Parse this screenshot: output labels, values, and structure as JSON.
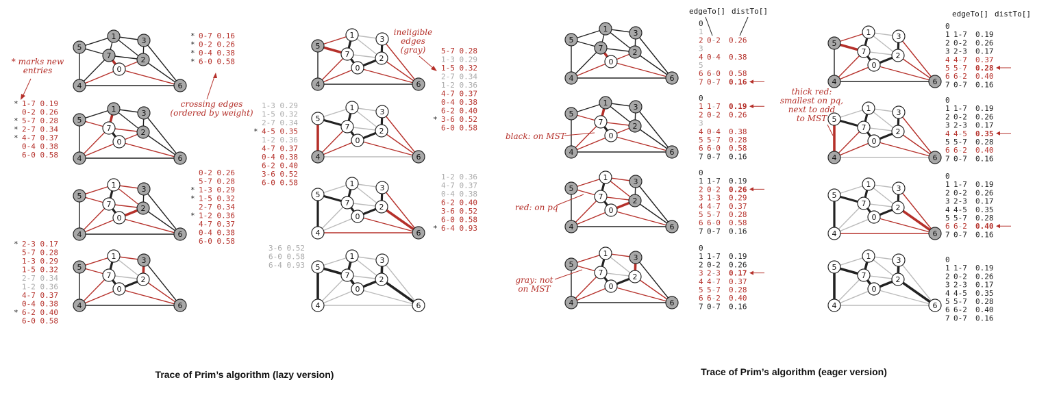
{
  "captions": {
    "lazy": "Trace of Prim’s algorithm (lazy version)",
    "eager": "Trace of Prim’s algorithm (eager version)"
  },
  "annotations": {
    "marks_new_1": "* marks new",
    "marks_new_2": "entries",
    "crossing_1": "crossing edges",
    "crossing_2": "(ordered by weight)",
    "ineligible_1": "ineligible",
    "ineligible_2": "edges",
    "ineligible_3": "(gray)",
    "black_mst": "black: on MST",
    "red_pq": "red: on pq",
    "gray_not_1": "gray: not",
    "gray_not_2": "on MST",
    "thick_1": "thick red:",
    "thick_2": "smallest on pq,",
    "thick_3": "next to add",
    "thick_4": "to MST",
    "col_edgeTo": "edgeTo[]",
    "col_distTo": "distTo[]"
  },
  "colors": {
    "red": "#b5302a",
    "gray": "#bbbbbb",
    "black": "#222222",
    "node_gray": "#a8a8a8"
  },
  "graph_vertices": [
    "0",
    "1",
    "2",
    "3",
    "4",
    "5",
    "6",
    "7"
  ],
  "lazy_lists": [
    [
      {
        "m": "*",
        "t": "0-7 0.16",
        "c": "r"
      },
      {
        "m": "*",
        "t": "0-2 0.26",
        "c": "r"
      },
      {
        "m": "*",
        "t": "0-4 0.38",
        "c": "r"
      },
      {
        "m": "*",
        "t": "6-0 0.58",
        "c": "r"
      }
    ],
    [
      {
        "m": "*",
        "t": "1-7 0.19",
        "c": "r"
      },
      {
        "m": "",
        "t": "0-2 0.26",
        "c": "r"
      },
      {
        "m": "*",
        "t": "5-7 0.28",
        "c": "r"
      },
      {
        "m": "*",
        "t": "2-7 0.34",
        "c": "r"
      },
      {
        "m": "*",
        "t": "4-7 0.37",
        "c": "r"
      },
      {
        "m": "",
        "t": "0-4 0.38",
        "c": "r"
      },
      {
        "m": "",
        "t": "6-0 0.58",
        "c": "r"
      }
    ],
    [
      {
        "m": "",
        "t": "0-2 0.26",
        "c": "r"
      },
      {
        "m": "",
        "t": "5-7 0.28",
        "c": "r"
      },
      {
        "m": "*",
        "t": "1-3 0.29",
        "c": "r"
      },
      {
        "m": "*",
        "t": "1-5 0.32",
        "c": "r"
      },
      {
        "m": "",
        "t": "2-7 0.34",
        "c": "r"
      },
      {
        "m": "*",
        "t": "1-2 0.36",
        "c": "r"
      },
      {
        "m": "",
        "t": "4-7 0.37",
        "c": "r"
      },
      {
        "m": "",
        "t": "0-4 0.38",
        "c": "r"
      },
      {
        "m": "",
        "t": "6-0 0.58",
        "c": "r"
      }
    ],
    [
      {
        "m": "*",
        "t": "2-3 0.17",
        "c": "r"
      },
      {
        "m": "",
        "t": "5-7 0.28",
        "c": "r"
      },
      {
        "m": "",
        "t": "1-3 0.29",
        "c": "r"
      },
      {
        "m": "",
        "t": "1-5 0.32",
        "c": "r"
      },
      {
        "m": "",
        "t": "2-7 0.34",
        "c": "g"
      },
      {
        "m": "",
        "t": "1-2 0.36",
        "c": "g"
      },
      {
        "m": "",
        "t": "4-7 0.37",
        "c": "r"
      },
      {
        "m": "",
        "t": "0-4 0.38",
        "c": "r"
      },
      {
        "m": "*",
        "t": "6-2 0.40",
        "c": "r"
      },
      {
        "m": "",
        "t": "6-0 0.58",
        "c": "r"
      }
    ],
    [
      {
        "m": "",
        "t": "5-7 0.28",
        "c": "r"
      },
      {
        "m": "",
        "t": "1-3 0.29",
        "c": "g"
      },
      {
        "m": "",
        "t": "1-5 0.32",
        "c": "r"
      },
      {
        "m": "",
        "t": "2-7 0.34",
        "c": "g"
      },
      {
        "m": "",
        "t": "1-2 0.36",
        "c": "g"
      },
      {
        "m": "",
        "t": "4-7 0.37",
        "c": "r"
      },
      {
        "m": "",
        "t": "0-4 0.38",
        "c": "r"
      },
      {
        "m": "",
        "t": "6-2 0.40",
        "c": "r"
      },
      {
        "m": "*",
        "t": "3-6 0.52",
        "c": "r"
      },
      {
        "m": "",
        "t": "6-0 0.58",
        "c": "r"
      }
    ],
    [
      {
        "m": "",
        "t": "1-3 0.29",
        "c": "g"
      },
      {
        "m": "",
        "t": "1-5 0.32",
        "c": "g"
      },
      {
        "m": "",
        "t": "2-7 0.34",
        "c": "g"
      },
      {
        "m": "*",
        "t": "4-5 0.35",
        "c": "r"
      },
      {
        "m": "",
        "t": "1-2 0.36",
        "c": "g"
      },
      {
        "m": "",
        "t": "4-7 0.37",
        "c": "r"
      },
      {
        "m": "",
        "t": "0-4 0.38",
        "c": "r"
      },
      {
        "m": "",
        "t": "6-2 0.40",
        "c": "r"
      },
      {
        "m": "",
        "t": "3-6 0.52",
        "c": "r"
      },
      {
        "m": "",
        "t": "6-0 0.58",
        "c": "r"
      }
    ],
    [
      {
        "m": "",
        "t": "1-2 0.36",
        "c": "g"
      },
      {
        "m": "",
        "t": "4-7 0.37",
        "c": "g"
      },
      {
        "m": "",
        "t": "0-4 0.38",
        "c": "g"
      },
      {
        "m": "",
        "t": "6-2 0.40",
        "c": "r"
      },
      {
        "m": "",
        "t": "3-6 0.52",
        "c": "r"
      },
      {
        "m": "",
        "t": "6-0 0.58",
        "c": "r"
      },
      {
        "m": "*",
        "t": "6-4 0.93",
        "c": "r"
      }
    ],
    [
      {
        "m": "",
        "t": "3-6 0.52",
        "c": "g"
      },
      {
        "m": "",
        "t": "6-0 0.58",
        "c": "g"
      },
      {
        "m": "",
        "t": "6-4 0.93",
        "c": "g"
      }
    ]
  ],
  "eager_tables": [
    [
      {
        "v": "0",
        "e": "",
        "d": ""
      },
      {
        "v": "1",
        "e": "",
        "d": "",
        "s": "g"
      },
      {
        "v": "2",
        "e": "0-2",
        "d": "0.26",
        "s": "r"
      },
      {
        "v": "3",
        "e": "",
        "d": "",
        "s": "g"
      },
      {
        "v": "4",
        "e": "0-4",
        "d": "0.38",
        "s": "r"
      },
      {
        "v": "5",
        "e": "",
        "d": "",
        "s": "g"
      },
      {
        "v": "6",
        "e": "6-0",
        "d": "0.58",
        "s": "r"
      },
      {
        "v": "7",
        "e": "0-7",
        "d": "0.16",
        "s": "r",
        "b": true,
        "a": true
      }
    ],
    [
      {
        "v": "0",
        "e": "",
        "d": ""
      },
      {
        "v": "1",
        "e": "1-7",
        "d": "0.19",
        "s": "r",
        "b": true,
        "a": true
      },
      {
        "v": "2",
        "e": "0-2",
        "d": "0.26",
        "s": "r"
      },
      {
        "v": "3",
        "e": "",
        "d": "",
        "s": "g"
      },
      {
        "v": "4",
        "e": "0-4",
        "d": "0.38",
        "s": "r"
      },
      {
        "v": "5",
        "e": "5-7",
        "d": "0.28",
        "s": "r"
      },
      {
        "v": "6",
        "e": "6-0",
        "d": "0.58",
        "s": "r"
      },
      {
        "v": "7",
        "e": "0-7",
        "d": "0.16",
        "s": "k"
      }
    ],
    [
      {
        "v": "0",
        "e": "",
        "d": ""
      },
      {
        "v": "1",
        "e": "1-7",
        "d": "0.19",
        "s": "k"
      },
      {
        "v": "2",
        "e": "0-2",
        "d": "0.26",
        "s": "r",
        "b": true,
        "a": true
      },
      {
        "v": "3",
        "e": "1-3",
        "d": "0.29",
        "s": "r"
      },
      {
        "v": "4",
        "e": "4-7",
        "d": "0.37",
        "s": "r"
      },
      {
        "v": "5",
        "e": "5-7",
        "d": "0.28",
        "s": "r"
      },
      {
        "v": "6",
        "e": "6-0",
        "d": "0.58",
        "s": "r"
      },
      {
        "v": "7",
        "e": "0-7",
        "d": "0.16",
        "s": "k"
      }
    ],
    [
      {
        "v": "0",
        "e": "",
        "d": ""
      },
      {
        "v": "1",
        "e": "1-7",
        "d": "0.19",
        "s": "k"
      },
      {
        "v": "2",
        "e": "0-2",
        "d": "0.26",
        "s": "k"
      },
      {
        "v": "3",
        "e": "2-3",
        "d": "0.17",
        "s": "r",
        "b": true,
        "a": true
      },
      {
        "v": "4",
        "e": "4-7",
        "d": "0.37",
        "s": "r"
      },
      {
        "v": "5",
        "e": "5-7",
        "d": "0.28",
        "s": "r"
      },
      {
        "v": "6",
        "e": "6-2",
        "d": "0.40",
        "s": "r"
      },
      {
        "v": "7",
        "e": "0-7",
        "d": "0.16",
        "s": "k"
      }
    ],
    [
      {
        "v": "0",
        "e": "",
        "d": ""
      },
      {
        "v": "1",
        "e": "1-7",
        "d": "0.19",
        "s": "k"
      },
      {
        "v": "2",
        "e": "0-2",
        "d": "0.26",
        "s": "k"
      },
      {
        "v": "3",
        "e": "2-3",
        "d": "0.17",
        "s": "k"
      },
      {
        "v": "4",
        "e": "4-7",
        "d": "0.37",
        "s": "r"
      },
      {
        "v": "5",
        "e": "5-7",
        "d": "0.28",
        "s": "r",
        "b": true,
        "a": true
      },
      {
        "v": "6",
        "e": "6-2",
        "d": "0.40",
        "s": "r"
      },
      {
        "v": "7",
        "e": "0-7",
        "d": "0.16",
        "s": "k"
      }
    ],
    [
      {
        "v": "0",
        "e": "",
        "d": ""
      },
      {
        "v": "1",
        "e": "1-7",
        "d": "0.19",
        "s": "k"
      },
      {
        "v": "2",
        "e": "0-2",
        "d": "0.26",
        "s": "k"
      },
      {
        "v": "3",
        "e": "2-3",
        "d": "0.17",
        "s": "k"
      },
      {
        "v": "4",
        "e": "4-5",
        "d": "0.35",
        "s": "r",
        "b": true,
        "a": true
      },
      {
        "v": "5",
        "e": "5-7",
        "d": "0.28",
        "s": "k"
      },
      {
        "v": "6",
        "e": "6-2",
        "d": "0.40",
        "s": "r"
      },
      {
        "v": "7",
        "e": "0-7",
        "d": "0.16",
        "s": "k"
      }
    ],
    [
      {
        "v": "0",
        "e": "",
        "d": ""
      },
      {
        "v": "1",
        "e": "1-7",
        "d": "0.19",
        "s": "k"
      },
      {
        "v": "2",
        "e": "0-2",
        "d": "0.26",
        "s": "k"
      },
      {
        "v": "3",
        "e": "2-3",
        "d": "0.17",
        "s": "k"
      },
      {
        "v": "4",
        "e": "4-5",
        "d": "0.35",
        "s": "k"
      },
      {
        "v": "5",
        "e": "5-7",
        "d": "0.28",
        "s": "k"
      },
      {
        "v": "6",
        "e": "6-2",
        "d": "0.40",
        "s": "r",
        "b": true,
        "a": true
      },
      {
        "v": "7",
        "e": "0-7",
        "d": "0.16",
        "s": "k"
      }
    ],
    [
      {
        "v": "0",
        "e": "",
        "d": ""
      },
      {
        "v": "1",
        "e": "1-7",
        "d": "0.19",
        "s": "k"
      },
      {
        "v": "2",
        "e": "0-2",
        "d": "0.26",
        "s": "k"
      },
      {
        "v": "3",
        "e": "2-3",
        "d": "0.17",
        "s": "k"
      },
      {
        "v": "4",
        "e": "4-5",
        "d": "0.35",
        "s": "k"
      },
      {
        "v": "5",
        "e": "5-7",
        "d": "0.28",
        "s": "k"
      },
      {
        "v": "6",
        "e": "6-2",
        "d": "0.40",
        "s": "k"
      },
      {
        "v": "7",
        "e": "0-7",
        "d": "0.16",
        "s": "k"
      }
    ]
  ]
}
